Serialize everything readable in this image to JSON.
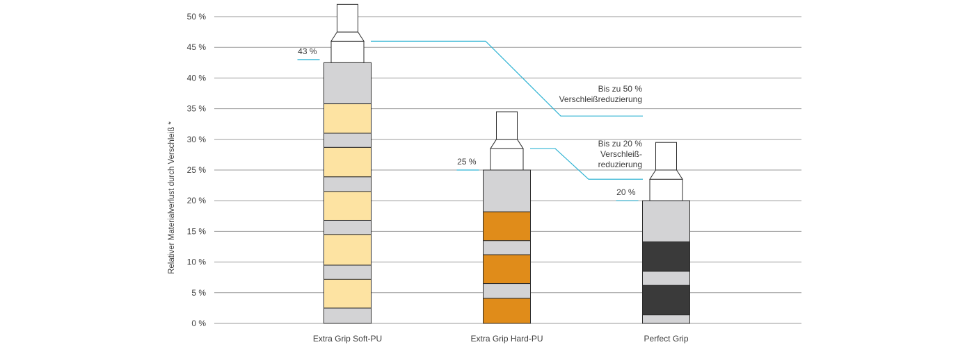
{
  "chart_data": {
    "type": "bar",
    "ylabel": "Relativer Materialverlust durch Verschleiß *",
    "ylim": [
      0,
      50
    ],
    "yticks": [
      {
        "value": 0,
        "label": "0 %"
      },
      {
        "value": 5,
        "label": "5 %"
      },
      {
        "value": 10,
        "label": "10 %"
      },
      {
        "value": 15,
        "label": "15 %"
      },
      {
        "value": 20,
        "label": "20 %"
      },
      {
        "value": 25,
        "label": "25 %"
      },
      {
        "value": 30,
        "label": "30 %"
      },
      {
        "value": 35,
        "label": "35 %"
      },
      {
        "value": 40,
        "label": "40 %"
      },
      {
        "value": 45,
        "label": "45 %"
      },
      {
        "value": 50,
        "label": "50 %"
      }
    ],
    "grid": true,
    "categories": [
      "Extra Grip Soft-PU",
      "Extra Grip Hard-PU",
      "Perfect Grip"
    ],
    "values": [
      43,
      25,
      20
    ],
    "value_labels": [
      "43 %",
      "25 %",
      "20 %"
    ],
    "bar_colors": [
      "#fde3a2",
      "#e08c1a",
      "#3a3a3a"
    ],
    "bars": [
      {
        "category": "Extra Grip Soft-PU",
        "value": 43,
        "layers": [
          {
            "from": 0,
            "to": 2.5,
            "material": "grey"
          },
          {
            "from": 2.5,
            "to": 7.2,
            "material": "color"
          },
          {
            "from": 7.2,
            "to": 9.5,
            "material": "grey"
          },
          {
            "from": 9.5,
            "to": 14.5,
            "material": "color"
          },
          {
            "from": 14.5,
            "to": 16.8,
            "material": "grey"
          },
          {
            "from": 16.8,
            "to": 21.5,
            "material": "color"
          },
          {
            "from": 21.5,
            "to": 23.9,
            "material": "grey"
          },
          {
            "from": 23.9,
            "to": 28.7,
            "material": "color"
          },
          {
            "from": 28.7,
            "to": 31.0,
            "material": "grey"
          },
          {
            "from": 31.0,
            "to": 35.8,
            "material": "color"
          },
          {
            "from": 35.8,
            "to": 42.5,
            "material": "grey"
          }
        ],
        "cap": {
          "collar_from": 42.5,
          "collar_to": 46.0,
          "cone_to": 47.5,
          "tip_to": 52.0
        }
      },
      {
        "category": "Extra Grip Hard-PU",
        "value": 25,
        "layers": [
          {
            "from": 0,
            "to": 4.1,
            "material": "color"
          },
          {
            "from": 4.1,
            "to": 6.5,
            "material": "grey"
          },
          {
            "from": 6.5,
            "to": 11.2,
            "material": "color"
          },
          {
            "from": 11.2,
            "to": 13.5,
            "material": "grey"
          },
          {
            "from": 13.5,
            "to": 18.2,
            "material": "color"
          },
          {
            "from": 18.2,
            "to": 25.0,
            "material": "grey"
          }
        ],
        "cap": {
          "collar_from": 25.0,
          "collar_to": 28.5,
          "cone_to": 30.0,
          "tip_to": 34.5
        }
      },
      {
        "category": "Perfect Grip",
        "value": 20,
        "layers": [
          {
            "from": 0,
            "to": 1.4,
            "material": "grey"
          },
          {
            "from": 1.4,
            "to": 6.2,
            "material": "color"
          },
          {
            "from": 6.2,
            "to": 8.5,
            "material": "grey"
          },
          {
            "from": 8.5,
            "to": 13.3,
            "material": "color"
          },
          {
            "from": 13.3,
            "to": 20.0,
            "material": "grey"
          }
        ],
        "cap": {
          "collar_from": 20.0,
          "collar_to": 23.5,
          "cone_to": 25.0,
          "tip_to": 29.5
        }
      }
    ],
    "annotations": [
      {
        "lines": [
          "Bis zu 50 %",
          "Verschleißreduzierung"
        ],
        "from_y": 46.0,
        "to_y": 33.8
      },
      {
        "lines": [
          "Bis zu 20 %",
          "Verschleiß-",
          "reduzierung"
        ],
        "from_y": 28.5,
        "to_y": 23.5
      }
    ],
    "colors": {
      "grey_layer": "#d3d3d5",
      "outline": "#2b2b2b",
      "gridline": "#9a9a9a",
      "connector": "#2fb3d3"
    }
  }
}
